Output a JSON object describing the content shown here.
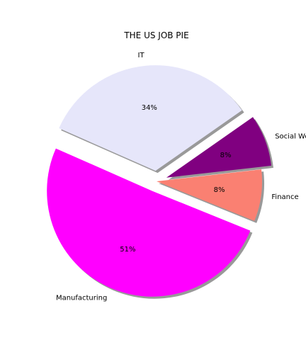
{
  "chart_data": {
    "type": "pie",
    "title": "THE US JOB PIE",
    "slices": [
      {
        "label": "IT",
        "value": 34,
        "pct_label": "34%",
        "color": "#e6e6fa",
        "explode": 0.1
      },
      {
        "label": "Manufacturing",
        "value": 51,
        "pct_label": "51%",
        "color": "#ff00ff",
        "explode": 0.1
      },
      {
        "label": "Finance",
        "value": 8,
        "pct_label": "8%",
        "color": "#fa8072",
        "explode": 0
      },
      {
        "label": "Social Workers",
        "value": 8,
        "pct_label": "8%",
        "color": "#800080",
        "explode": 0.1
      }
    ],
    "shadow": true,
    "legend": "none"
  }
}
